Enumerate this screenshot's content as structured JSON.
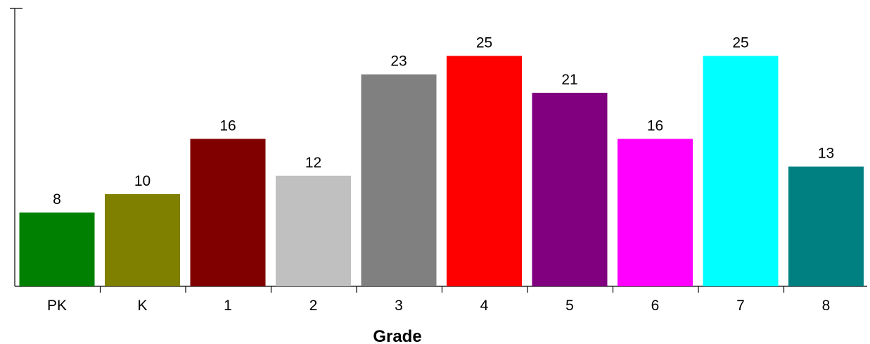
{
  "chart_data": {
    "type": "bar",
    "title": "",
    "xlabel": "Grade",
    "ylabel": "",
    "categories": [
      "PK",
      "K",
      "1",
      "2",
      "3",
      "4",
      "5",
      "6",
      "7",
      "8"
    ],
    "values": [
      8,
      10,
      16,
      12,
      23,
      25,
      21,
      16,
      25,
      13
    ],
    "colors": [
      "#008000",
      "#808000",
      "#800000",
      "#c0c0c0",
      "#808080",
      "#ff0000",
      "#800080",
      "#ff00ff",
      "#00ffff",
      "#008080"
    ],
    "ylim": [
      0,
      31
    ],
    "grid": false,
    "legend": "none",
    "data_labels": true
  }
}
